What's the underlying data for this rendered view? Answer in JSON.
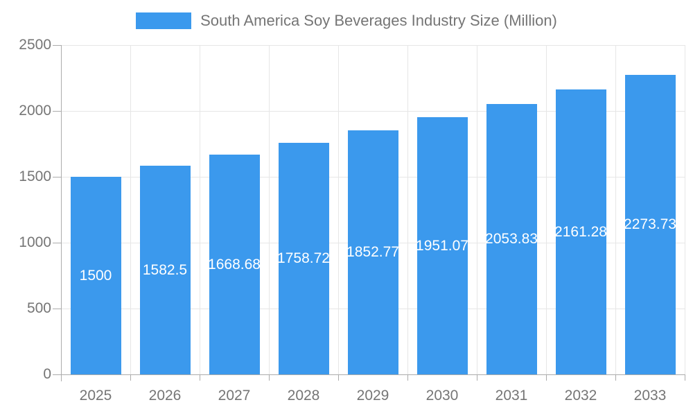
{
  "legend": {
    "label": "South America Soy Beverages Industry Size (Million)",
    "swatch_color": "#3B99ED"
  },
  "colors": {
    "bar": "#3B99ED",
    "value_label_text": "#ffffff",
    "axis_text": "#757575",
    "axis_line": "#ababab",
    "gridline": "#e6e6e6",
    "background": "#ffffff"
  },
  "chart_data": {
    "type": "bar",
    "title": "South America Soy Beverages Industry Size (Million)",
    "legend_position": "top",
    "grid": true,
    "categories": [
      "2025",
      "2026",
      "2027",
      "2028",
      "2029",
      "2030",
      "2031",
      "2032",
      "2033"
    ],
    "values": [
      1500,
      1582.5,
      1668.68,
      1758.72,
      1852.77,
      1951.07,
      2053.83,
      2161.28,
      2273.73
    ],
    "value_labels": [
      "1500",
      "1582.5",
      "1668.68",
      "1758.72",
      "1852.77",
      "1951.07",
      "2053.83",
      "2161.28",
      "2273.73"
    ],
    "xlabel": "",
    "ylabel": "",
    "ylim": [
      0,
      2500
    ],
    "yticks": [
      0,
      500,
      1000,
      1500,
      2000,
      2500
    ]
  }
}
